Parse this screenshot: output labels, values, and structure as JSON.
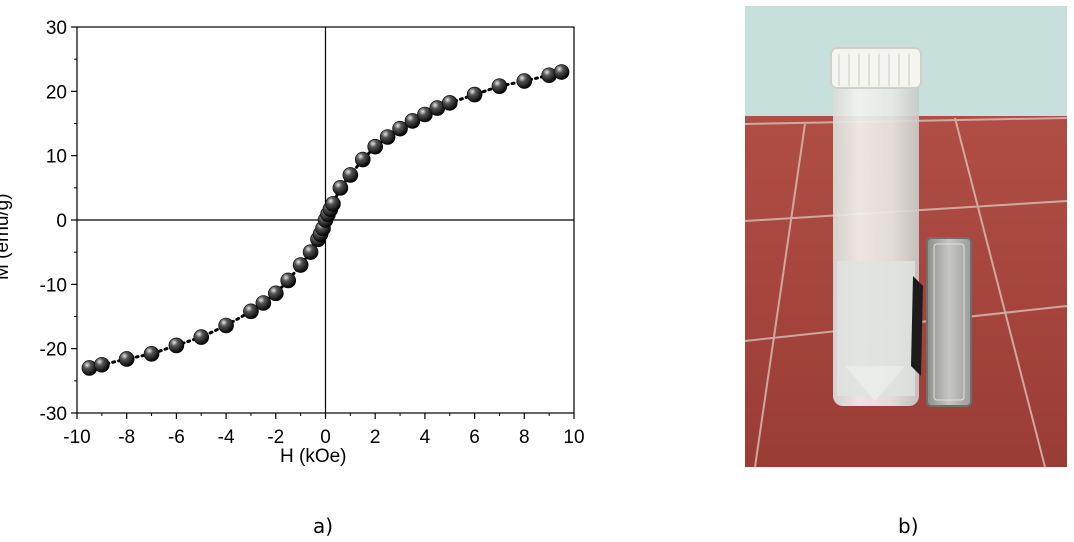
{
  "chart_data": {
    "type": "scatter",
    "xlabel": "H (kOe)",
    "ylabel": "M (emu/g)",
    "xlim": [
      -10,
      10
    ],
    "ylim": [
      -30,
      30
    ],
    "xticks": [
      "-10",
      "-8",
      "-6",
      "-4",
      "-2",
      "0",
      "2",
      "4",
      "6",
      "8",
      "10"
    ],
    "yticks": [
      "-30",
      "-20",
      "-10",
      "0",
      "10",
      "20",
      "30"
    ],
    "grid": false,
    "series": [
      {
        "marker": "sphere",
        "line": "dotted",
        "color": "#000000",
        "x": [
          -9.5,
          -9.0,
          -8.0,
          -7.0,
          -6.0,
          -5.0,
          -4.0,
          -3.0,
          -2.5,
          -2.0,
          -1.5,
          -1.0,
          -0.6,
          -0.3,
          -0.2,
          -0.1,
          0.0,
          0.1,
          0.2,
          0.3,
          0.6,
          1.0,
          1.5,
          2.0,
          2.5,
          3.0,
          3.5,
          4.0,
          4.5,
          5.0,
          6.0,
          7.0,
          8.0,
          9.0,
          9.5
        ],
        "y": [
          -23.0,
          -22.5,
          -21.6,
          -20.8,
          -19.5,
          -18.2,
          -16.4,
          -14.2,
          -12.9,
          -11.4,
          -9.4,
          -7.0,
          -5.0,
          -3.0,
          -2.2,
          -1.3,
          0.0,
          0.9,
          1.7,
          2.5,
          5.0,
          7.0,
          9.4,
          11.4,
          12.9,
          14.2,
          15.4,
          16.4,
          17.4,
          18.2,
          19.5,
          20.8,
          21.6,
          22.5,
          23.0
        ]
      }
    ]
  },
  "captions": {
    "left": "a)",
    "right": "b)"
  },
  "photo": {
    "description": "vial of clear liquid with white cap beside a rectangular magnet, dark particles collected on the vial wall near magnet, red tiled floor background",
    "colors": {
      "wall": "#c8e0dc",
      "floor": "#a8433c",
      "cap": "#f4f4f0",
      "magnet": "#b8b8b4"
    }
  }
}
